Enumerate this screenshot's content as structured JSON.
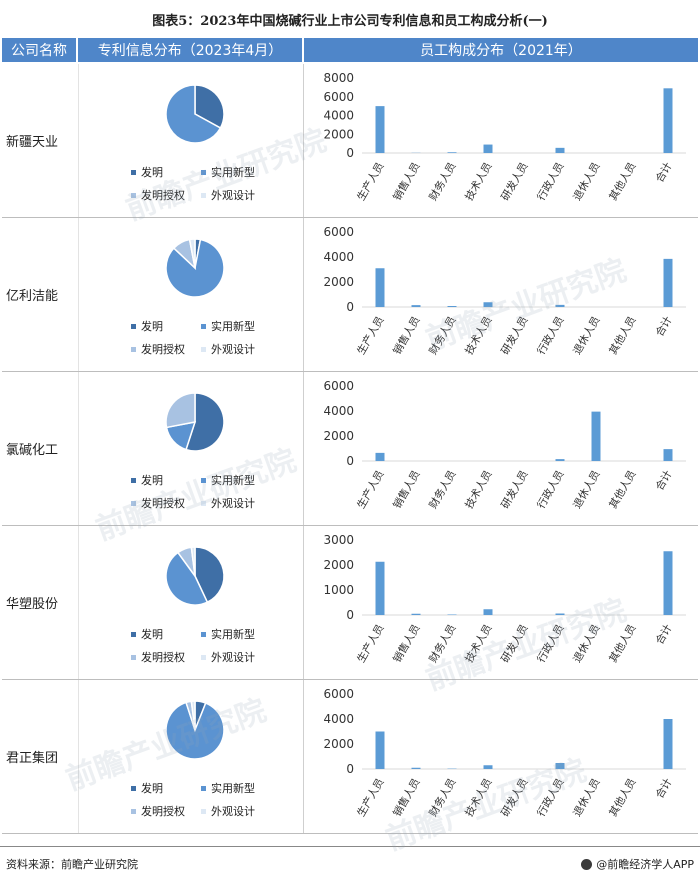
{
  "title": "图表5：2023年中国烧碱行业上市公司专利信息和员工构成分析(一)",
  "headers": {
    "company": "公司名称",
    "patent": "专利信息分布（2023年4月）",
    "staff": "员工构成分布（2021年）"
  },
  "legend_labels": [
    "发明",
    "实用新型",
    "发明授权",
    "外观设计"
  ],
  "colors": {
    "header_bg": "#4f86c9",
    "pie": [
      "#3f6fa6",
      "#5b93d1",
      "#a8c2e2",
      "#dde8f4"
    ],
    "bar": "#5b9bd5"
  },
  "watermark": "前瞻产业研究院",
  "footer": {
    "source": "资料来源：前瞻产业研究院",
    "brand": "@前瞻经济学人APP"
  },
  "chart_data": [
    {
      "company": "新疆天业",
      "pie": {
        "type": "pie",
        "labels": [
          "发明",
          "实用新型",
          "发明授权",
          "外观设计"
        ],
        "values": [
          33,
          67,
          0,
          0
        ]
      },
      "bar": {
        "type": "bar",
        "categories": [
          "生产人员",
          "销售人员",
          "财务人员",
          "技术人员",
          "研发人员",
          "行政人员",
          "退休人员",
          "其他人员",
          "合计"
        ],
        "values": [
          5000,
          20,
          80,
          900,
          0,
          550,
          0,
          0,
          6900
        ],
        "yticks": [
          0,
          2000,
          4000,
          6000,
          8000
        ],
        "ylim": [
          0,
          8000
        ]
      }
    },
    {
      "company": "亿利洁能",
      "pie": {
        "type": "pie",
        "labels": [
          "发明",
          "实用新型",
          "发明授权",
          "外观设计"
        ],
        "values": [
          3,
          84,
          10,
          3
        ]
      },
      "bar": {
        "type": "bar",
        "categories": [
          "生产人员",
          "销售人员",
          "财务人员",
          "技术人员",
          "研发人员",
          "行政人员",
          "退休人员",
          "其他人员",
          "合计"
        ],
        "values": [
          3100,
          150,
          80,
          380,
          0,
          170,
          0,
          0,
          3850
        ],
        "yticks": [
          0,
          2000,
          4000,
          6000
        ],
        "ylim": [
          0,
          6000
        ]
      }
    },
    {
      "company": "氯碱化工",
      "pie": {
        "type": "pie",
        "labels": [
          "发明",
          "实用新型",
          "发明授权",
          "外观设计"
        ],
        "values": [
          55,
          17,
          28,
          0
        ]
      },
      "bar": {
        "type": "bar",
        "categories": [
          "生产人员",
          "销售人员",
          "财务人员",
          "技术人员",
          "研发人员",
          "行政人员",
          "退休人员",
          "其他人员",
          "合计"
        ],
        "values": [
          650,
          0,
          0,
          0,
          0,
          150,
          3950,
          0,
          950
        ],
        "yticks": [
          0,
          2000,
          4000,
          6000
        ],
        "ylim": [
          0,
          6000
        ]
      }
    },
    {
      "company": "华塑股份",
      "pie": {
        "type": "pie",
        "labels": [
          "发明",
          "实用新型",
          "发明授权",
          "外观设计"
        ],
        "values": [
          43,
          47,
          8,
          2
        ]
      },
      "bar": {
        "type": "bar",
        "categories": [
          "生产人员",
          "销售人员",
          "财务人员",
          "技术人员",
          "研发人员",
          "行政人员",
          "退休人员",
          "其他人员",
          "合计"
        ],
        "values": [
          2130,
          50,
          20,
          230,
          0,
          60,
          0,
          0,
          2550
        ],
        "yticks": [
          0,
          1000,
          2000,
          3000
        ],
        "ylim": [
          0,
          3000
        ]
      }
    },
    {
      "company": "君正集团",
      "pie": {
        "type": "pie",
        "labels": [
          "发明",
          "实用新型",
          "发明授权",
          "外观设计"
        ],
        "values": [
          6,
          89,
          3,
          2
        ]
      },
      "bar": {
        "type": "bar",
        "categories": [
          "生产人员",
          "销售人员",
          "财务人员",
          "技术人员",
          "研发人员",
          "行政人员",
          "退休人员",
          "其他人员",
          "合计"
        ],
        "values": [
          3000,
          100,
          30,
          300,
          0,
          480,
          0,
          0,
          4000
        ],
        "yticks": [
          0,
          2000,
          4000,
          6000
        ],
        "ylim": [
          0,
          6000
        ]
      }
    }
  ]
}
